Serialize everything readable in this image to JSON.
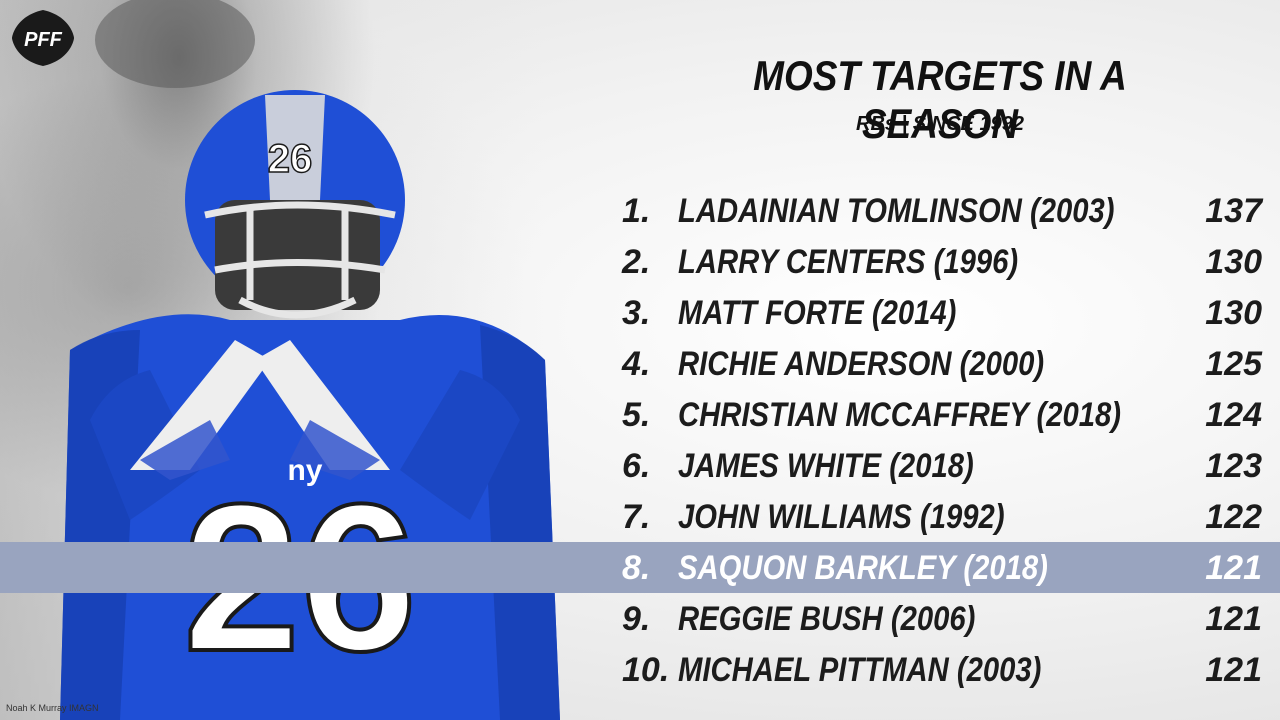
{
  "brand": {
    "logo_text": "PFF"
  },
  "photo": {
    "credit": "Noah K Murray IMAGN",
    "jersey_number": "26",
    "team_mark": "ny"
  },
  "header": {
    "title": "MOST TARGETS IN A SEASON",
    "subtitle": "RBs | SINCE 1992"
  },
  "colors": {
    "highlight": "#99a4bf",
    "jersey_blue": "#1f4fd6",
    "text": "#1c1c1c"
  },
  "rankings": [
    {
      "rank": "1.",
      "name": "LADAINIAN TOMLINSON (2003)",
      "value": "137"
    },
    {
      "rank": "2.",
      "name": "LARRY CENTERS (1996)",
      "value": "130"
    },
    {
      "rank": "3.",
      "name": "MATT FORTE (2014)",
      "value": "130"
    },
    {
      "rank": "4.",
      "name": "RICHIE ANDERSON (2000)",
      "value": "125"
    },
    {
      "rank": "5.",
      "name": "CHRISTIAN MCCAFFREY (2018)",
      "value": "124"
    },
    {
      "rank": "6.",
      "name": "JAMES WHITE (2018)",
      "value": "123"
    },
    {
      "rank": "7.",
      "name": "JOHN WILLIAMS (1992)",
      "value": "122"
    },
    {
      "rank": "8.",
      "name": "SAQUON BARKLEY (2018)",
      "value": "121",
      "highlighted": true
    },
    {
      "rank": "9.",
      "name": "REGGIE BUSH (2006)",
      "value": "121"
    },
    {
      "rank": "10.",
      "name": "MICHAEL PITTMAN (2003)",
      "value": "121"
    }
  ]
}
